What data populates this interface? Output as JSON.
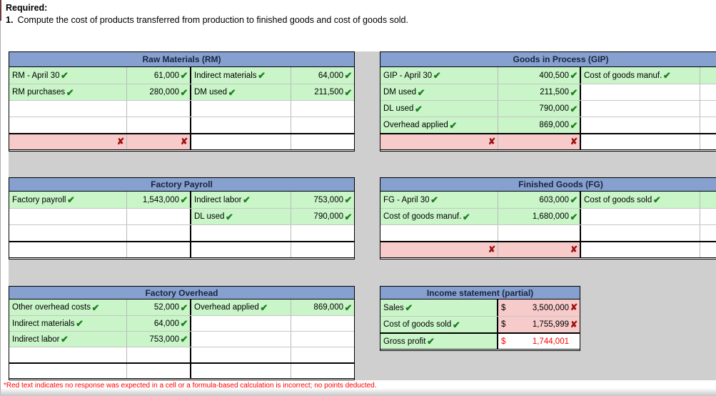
{
  "header": {
    "required_label": "Required:",
    "item_number": "1.",
    "item_text": "Compute the cost of products transferred from production to finished goods and cost of goods sold."
  },
  "footnote": "*Red text indicates no response was expected in a cell or a formula-based calculation is incorrect; no points deducted.",
  "icons": {
    "check": "✔",
    "x": "✘"
  },
  "colors": {
    "header_blue": "#86A0CF",
    "header_text": "#1A2440",
    "correct_green_bg": "#C9F5C9",
    "incorrect_pink_bg": "#F8CBCB",
    "check_green": "#1E7D1E",
    "x_dark_red": "#9C1111",
    "red_text": "#FF0000",
    "backdrop_gray": "#CFCFCF"
  },
  "tables": [
    {
      "id": "raw-materials",
      "title": "Raw Materials (RM)",
      "rows": [
        {
          "cells": [
            {
              "k": "label",
              "text": "RM - April 30",
              "mark": "check",
              "state": "filled"
            },
            {
              "k": "value",
              "text": "61,000",
              "mark": "check",
              "state": "filled"
            },
            {
              "k": "label",
              "text": "Indirect materials",
              "mark": "check",
              "state": "filled"
            },
            {
              "k": "value",
              "text": "64,000",
              "mark": "check",
              "state": "filled"
            }
          ]
        },
        {
          "cells": [
            {
              "k": "label",
              "text": "RM purchases",
              "mark": "check",
              "state": "filled"
            },
            {
              "k": "value",
              "text": "280,000",
              "mark": "check",
              "state": "filled"
            },
            {
              "k": "label",
              "text": "DM used",
              "mark": "check",
              "state": "filled"
            },
            {
              "k": "value",
              "text": "211,500",
              "mark": "check",
              "state": "filled"
            }
          ]
        },
        {
          "cells": [
            {
              "k": "label",
              "state": "empty"
            },
            {
              "k": "value",
              "state": "empty"
            },
            {
              "k": "label",
              "state": "empty"
            },
            {
              "k": "value",
              "state": "empty"
            }
          ]
        },
        {
          "cells": [
            {
              "k": "label",
              "state": "empty"
            },
            {
              "k": "value",
              "state": "empty"
            },
            {
              "k": "label",
              "state": "empty"
            },
            {
              "k": "value",
              "state": "empty"
            }
          ]
        },
        {
          "rule": true,
          "cells": [
            {
              "k": "label",
              "mark": "x",
              "state": "wrong"
            },
            {
              "k": "value",
              "mark": "x",
              "state": "wrong"
            },
            {
              "k": "label",
              "state": "empty"
            },
            {
              "k": "value",
              "state": "empty"
            }
          ]
        }
      ]
    },
    {
      "id": "goods-in-process",
      "title": "Goods in Process (GIP)",
      "rows": [
        {
          "cells": [
            {
              "k": "label",
              "text": "GIP - April 30",
              "mark": "check",
              "state": "filled"
            },
            {
              "k": "value",
              "text": "400,500",
              "mark": "check",
              "state": "filled"
            },
            {
              "k": "label",
              "text": "Cost of goods manuf.",
              "mark": "check",
              "state": "filled"
            },
            {
              "k": "value",
              "state": "filled"
            }
          ]
        },
        {
          "cells": [
            {
              "k": "label",
              "text": "DM used",
              "mark": "check",
              "state": "filled"
            },
            {
              "k": "value",
              "text": "211,500",
              "mark": "check",
              "state": "filled"
            },
            {
              "k": "label",
              "state": "empty"
            },
            {
              "k": "value",
              "state": "empty"
            }
          ]
        },
        {
          "cells": [
            {
              "k": "label",
              "text": "DL used",
              "mark": "check",
              "state": "filled"
            },
            {
              "k": "value",
              "text": "790,000",
              "mark": "check",
              "state": "filled"
            },
            {
              "k": "label",
              "state": "empty"
            },
            {
              "k": "value",
              "state": "empty"
            }
          ]
        },
        {
          "cells": [
            {
              "k": "label",
              "text": "Overhead applied",
              "mark": "check",
              "state": "filled"
            },
            {
              "k": "value",
              "text": "869,000",
              "mark": "check",
              "state": "filled"
            },
            {
              "k": "label",
              "state": "empty"
            },
            {
              "k": "value",
              "state": "empty"
            }
          ]
        },
        {
          "rule": true,
          "cells": [
            {
              "k": "label",
              "mark": "x",
              "state": "wrong"
            },
            {
              "k": "value",
              "mark": "x",
              "state": "wrong"
            },
            {
              "k": "label",
              "state": "empty"
            },
            {
              "k": "value",
              "state": "empty"
            }
          ]
        }
      ]
    },
    {
      "id": "factory-payroll",
      "title": "Factory Payroll",
      "rows": [
        {
          "cells": [
            {
              "k": "label",
              "text": "Factory payroll",
              "mark": "check",
              "state": "filled"
            },
            {
              "k": "value",
              "text": "1,543,000",
              "mark": "check",
              "state": "filled"
            },
            {
              "k": "label",
              "text": "Indirect labor",
              "mark": "check",
              "state": "filled"
            },
            {
              "k": "value",
              "text": "753,000",
              "mark": "check",
              "state": "filled"
            }
          ]
        },
        {
          "cells": [
            {
              "k": "label",
              "state": "empty"
            },
            {
              "k": "value",
              "state": "empty"
            },
            {
              "k": "label",
              "text": "DL used",
              "mark": "check",
              "state": "filled"
            },
            {
              "k": "value",
              "text": "790,000",
              "mark": "check",
              "state": "filled"
            }
          ]
        },
        {
          "cells": [
            {
              "k": "label",
              "state": "empty"
            },
            {
              "k": "value",
              "state": "empty"
            },
            {
              "k": "label",
              "state": "empty"
            },
            {
              "k": "value",
              "state": "empty"
            }
          ]
        },
        {
          "rule": true,
          "cells": [
            {
              "k": "label",
              "state": "empty"
            },
            {
              "k": "value",
              "state": "empty"
            },
            {
              "k": "label",
              "state": "empty"
            },
            {
              "k": "value",
              "state": "empty"
            }
          ]
        }
      ]
    },
    {
      "id": "finished-goods",
      "title": "Finished Goods (FG)",
      "rows": [
        {
          "cells": [
            {
              "k": "label",
              "text": "FG - April 30",
              "mark": "check",
              "state": "filled"
            },
            {
              "k": "value",
              "text": "603,000",
              "mark": "check",
              "state": "filled"
            },
            {
              "k": "label",
              "text": "Cost of goods sold",
              "mark": "check",
              "state": "filled"
            },
            {
              "k": "value",
              "state": "filled"
            }
          ]
        },
        {
          "cells": [
            {
              "k": "label",
              "text": "Cost of goods manuf.",
              "mark": "check",
              "state": "filled"
            },
            {
              "k": "value",
              "text": "1,680,000",
              "mark": "check",
              "state": "filled"
            },
            {
              "k": "label",
              "state": "empty"
            },
            {
              "k": "value",
              "state": "empty"
            }
          ]
        },
        {
          "cells": [
            {
              "k": "label",
              "state": "empty"
            },
            {
              "k": "value",
              "state": "empty"
            },
            {
              "k": "label",
              "state": "empty"
            },
            {
              "k": "value",
              "state": "empty"
            }
          ]
        },
        {
          "rule": true,
          "cells": [
            {
              "k": "label",
              "mark": "x",
              "state": "wrong"
            },
            {
              "k": "value",
              "mark": "x",
              "state": "wrong"
            },
            {
              "k": "label",
              "state": "empty"
            },
            {
              "k": "value",
              "state": "empty"
            }
          ]
        }
      ]
    },
    {
      "id": "factory-overhead",
      "title": "Factory Overhead",
      "rows": [
        {
          "cells": [
            {
              "k": "label",
              "text": "Other overhead costs",
              "mark": "check",
              "state": "filled"
            },
            {
              "k": "value",
              "text": "52,000",
              "mark": "check",
              "state": "filled"
            },
            {
              "k": "label",
              "text": "Overhead applied",
              "mark": "check",
              "state": "filled"
            },
            {
              "k": "value",
              "text": "869,000",
              "mark": "check",
              "state": "filled"
            }
          ]
        },
        {
          "cells": [
            {
              "k": "label",
              "text": "Indirect materials",
              "mark": "check",
              "state": "filled"
            },
            {
              "k": "value",
              "text": "64,000",
              "mark": "check",
              "state": "filled"
            },
            {
              "k": "label",
              "state": "empty"
            },
            {
              "k": "value",
              "state": "empty"
            }
          ]
        },
        {
          "cells": [
            {
              "k": "label",
              "text": "Indirect labor",
              "mark": "check",
              "state": "filled"
            },
            {
              "k": "value",
              "text": "753,000",
              "mark": "check",
              "state": "filled"
            },
            {
              "k": "label",
              "state": "empty"
            },
            {
              "k": "value",
              "state": "empty"
            }
          ]
        },
        {
          "cells": [
            {
              "k": "label",
              "state": "empty"
            },
            {
              "k": "value",
              "state": "empty"
            },
            {
              "k": "label",
              "state": "empty"
            },
            {
              "k": "value",
              "state": "empty"
            }
          ]
        },
        {
          "rule": true,
          "cells": [
            {
              "k": "label",
              "state": "empty"
            },
            {
              "k": "value",
              "state": "empty"
            },
            {
              "k": "label",
              "state": "empty"
            },
            {
              "k": "value",
              "state": "empty"
            }
          ]
        }
      ]
    },
    {
      "id": "income-statement",
      "title": "Income statement (partial)",
      "rows": [
        {
          "cells": [
            {
              "k": "label",
              "text": "Sales",
              "mark": "check",
              "state": "filled"
            },
            {
              "k": "money",
              "cur": "$",
              "text": "3,500,000",
              "mark": "x",
              "state": "wrong"
            }
          ]
        },
        {
          "cells": [
            {
              "k": "label",
              "text": "Cost of goods sold",
              "mark": "check",
              "state": "filled"
            },
            {
              "k": "money",
              "cur": "$",
              "text": "1,755,999",
              "mark": "x",
              "state": "wrong"
            }
          ]
        },
        {
          "rule": true,
          "cells": [
            {
              "k": "label",
              "text": "Gross profit",
              "mark": "check",
              "state": "filled"
            },
            {
              "k": "money",
              "cur": "$",
              "text": "1,744,001",
              "state": "empty",
              "red": true
            }
          ]
        }
      ]
    }
  ]
}
